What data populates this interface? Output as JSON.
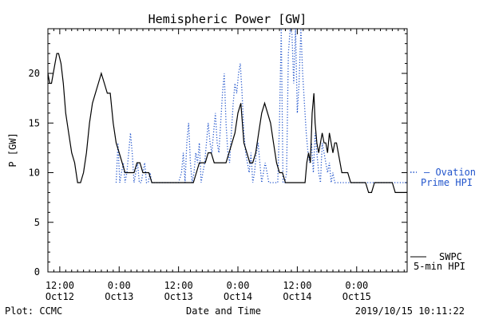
{
  "chart_data": {
    "type": "line",
    "title": "Hemispheric Power [GW]",
    "ylabel": "P [GW]",
    "xlabel": "Date and Time",
    "ylim": [
      0,
      24.5
    ],
    "xlim_hours": [
      0,
      60.5
    ],
    "y_ticks": [
      0,
      5,
      10,
      15,
      20
    ],
    "y_tick_labels": [
      "0",
      "5",
      "10",
      "15",
      "20"
    ],
    "x_ticks": [
      {
        "hour": 2,
        "time": "12:00",
        "date": "Oct12"
      },
      {
        "hour": 12,
        "time": "0:00",
        "date": "Oct13"
      },
      {
        "hour": 22,
        "time": "12:00",
        "date": "Oct13"
      },
      {
        "hour": 32,
        "time": "0:00",
        "date": "Oct14"
      },
      {
        "hour": 42,
        "time": "12:00",
        "date": "Oct14"
      },
      {
        "hour": 52,
        "time": "0:00",
        "date": "Oct15"
      }
    ],
    "grid": false,
    "legend_placement": "right",
    "series": [
      {
        "name": "SWPC 5-min HPI",
        "style": "solid",
        "color": "#000000",
        "x": [
          0,
          0.3,
          0.6,
          0.9,
          1.2,
          1.5,
          1.8,
          2.2,
          2.6,
          3.0,
          3.5,
          4.0,
          4.5,
          5.0,
          5.5,
          6.0,
          6.5,
          7.0,
          7.5,
          8.0,
          8.5,
          9.0,
          9.5,
          10.0,
          10.5,
          11.0,
          11.5,
          12.0,
          12.5,
          13.0,
          13.5,
          14.0,
          14.5,
          15.0,
          15.5,
          16.0,
          16.5,
          17.0,
          17.5,
          18.0,
          19.0,
          20.0,
          21.0,
          22.0,
          23.0,
          24.0,
          24.5,
          25.0,
          25.5,
          26.0,
          26.5,
          27.0,
          27.5,
          28.0,
          28.5,
          29.0,
          29.5,
          30.0,
          30.5,
          31.0,
          31.5,
          32.0,
          32.5,
          33.0,
          33.5,
          34.0,
          34.5,
          35.0,
          35.5,
          36.0,
          36.5,
          37.0,
          37.5,
          38.0,
          38.5,
          39.0,
          39.5,
          40.0,
          41.0,
          42.0,
          42.5,
          43.0,
          43.3,
          43.6,
          43.9,
          44.2,
          44.5,
          44.8,
          45.0,
          45.3,
          45.6,
          45.9,
          46.2,
          46.5,
          46.8,
          47.1,
          47.4,
          47.7,
          48.0,
          48.3,
          48.6,
          48.9,
          49.2,
          49.5,
          49.8,
          50.0,
          50.5,
          51.0,
          51.5,
          52.0,
          52.5,
          53.0,
          53.5,
          54.0,
          54.5,
          55.0,
          55.5,
          56.0,
          56.5,
          57.0,
          57.5,
          58.0,
          58.5,
          59.0,
          59.5,
          60.0,
          60.5
        ],
        "y": [
          20,
          19,
          19,
          20,
          21,
          22,
          22,
          21,
          19,
          16,
          14,
          12,
          11,
          9,
          9,
          10,
          12,
          15,
          17,
          18,
          19,
          20,
          19,
          18,
          18,
          15,
          13,
          12,
          11,
          10,
          10,
          10,
          10,
          11,
          11,
          10,
          10,
          10,
          9,
          9,
          9,
          9,
          9,
          9,
          9,
          9,
          9,
          10,
          11,
          11,
          11,
          12,
          12,
          11,
          11,
          11,
          11,
          11,
          12,
          13,
          14,
          16,
          17,
          13,
          12,
          11,
          11,
          12,
          14,
          16,
          17,
          16,
          15,
          13,
          11,
          10,
          10,
          9,
          9,
          9,
          9,
          9,
          9,
          11,
          12,
          11,
          16,
          18,
          15,
          13,
          12,
          13,
          14,
          13,
          13,
          12,
          14,
          13,
          12,
          13,
          13,
          12,
          11,
          10,
          10,
          10,
          10,
          9,
          9,
          9,
          9,
          9,
          9,
          8,
          8,
          9,
          9,
          9,
          9,
          9,
          9,
          9,
          8,
          8,
          8,
          8,
          8
        ]
      },
      {
        "name": "Ovation Prime HPI",
        "style": "dotted",
        "color": "#2255cc",
        "x": [
          11.5,
          11.8,
          12.1,
          12.4,
          12.7,
          13.0,
          13.3,
          13.6,
          13.9,
          14.2,
          14.5,
          14.8,
          15.1,
          15.4,
          15.7,
          16.0,
          16.3,
          16.6,
          16.9,
          17.2,
          17.5,
          18.0,
          20.0,
          22.0,
          22.5,
          22.8,
          23.1,
          23.4,
          23.7,
          24.0,
          24.3,
          24.6,
          24.9,
          25.2,
          25.5,
          25.8,
          26.1,
          26.4,
          26.7,
          27.0,
          27.3,
          27.6,
          27.9,
          28.2,
          28.5,
          28.8,
          29.1,
          29.4,
          29.7,
          30.0,
          30.3,
          30.6,
          30.9,
          31.2,
          31.5,
          31.8,
          32.1,
          32.4,
          32.7,
          33.0,
          33.3,
          33.6,
          33.9,
          34.2,
          34.5,
          34.8,
          35.1,
          35.4,
          35.7,
          36.0,
          36.3,
          36.6,
          36.9,
          37.2,
          37.5,
          37.8,
          38.1,
          38.4,
          38.7,
          39.0,
          39.3,
          39.6,
          39.9,
          40.2,
          40.5,
          40.8,
          41.1,
          41.4,
          41.7,
          42.0,
          42.3,
          42.6,
          42.9,
          43.2,
          43.5,
          43.8,
          44.1,
          44.4,
          44.7,
          45.0,
          45.3,
          45.6,
          45.9,
          46.2,
          46.5,
          46.8,
          47.1,
          47.4,
          47.7,
          48.0,
          48.3,
          48.6,
          48.9,
          49.2,
          49.5,
          49.8,
          50.1,
          50.4,
          50.7,
          51.0,
          51.3,
          51.6,
          51.9,
          52.2,
          52.5,
          52.8,
          53.1,
          53.4,
          53.7,
          54.0,
          54.5,
          55.0,
          56.0,
          57.0,
          58.0,
          59.0,
          60.0,
          60.5
        ],
        "y": [
          9,
          13,
          9,
          10,
          11,
          9,
          10,
          12,
          14,
          12,
          9,
          10,
          11,
          9,
          9,
          10,
          11,
          9,
          9,
          10,
          9,
          9,
          9,
          9,
          10,
          12,
          9,
          13,
          15,
          11,
          9,
          10,
          12,
          11,
          13,
          9,
          10,
          11,
          13,
          15,
          13,
          12,
          14,
          16,
          13,
          12,
          15,
          18,
          20,
          15,
          12,
          11,
          14,
          17,
          19,
          18,
          20,
          21,
          18,
          14,
          12,
          11,
          10,
          12,
          9,
          10,
          12,
          13,
          11,
          9,
          10,
          11,
          10,
          9,
          9,
          9,
          9,
          9,
          9,
          15,
          25,
          9,
          9,
          10,
          22,
          25,
          24,
          19,
          25,
          16,
          19,
          25,
          20,
          17,
          14,
          12,
          11,
          13,
          10,
          14,
          12,
          10,
          9,
          13,
          12,
          11,
          10,
          11,
          9,
          10,
          9,
          9,
          9,
          9,
          9,
          9,
          9,
          9,
          9,
          9,
          9,
          9,
          9,
          9,
          9,
          9,
          9,
          9,
          9,
          9,
          9,
          9,
          9,
          9,
          9,
          9,
          9,
          9
        ]
      }
    ]
  },
  "legend": {
    "ovation_line1": "— Ovation",
    "ovation_line2": "Prime HPI",
    "swpc_line1": "SWPC",
    "swpc_line2": "5-min HPI",
    "ovation_color": "#2255cc",
    "swpc_color": "#000000"
  },
  "footer": {
    "left": "Plot: CCMC",
    "right": "2019/10/15 10:11:22"
  }
}
